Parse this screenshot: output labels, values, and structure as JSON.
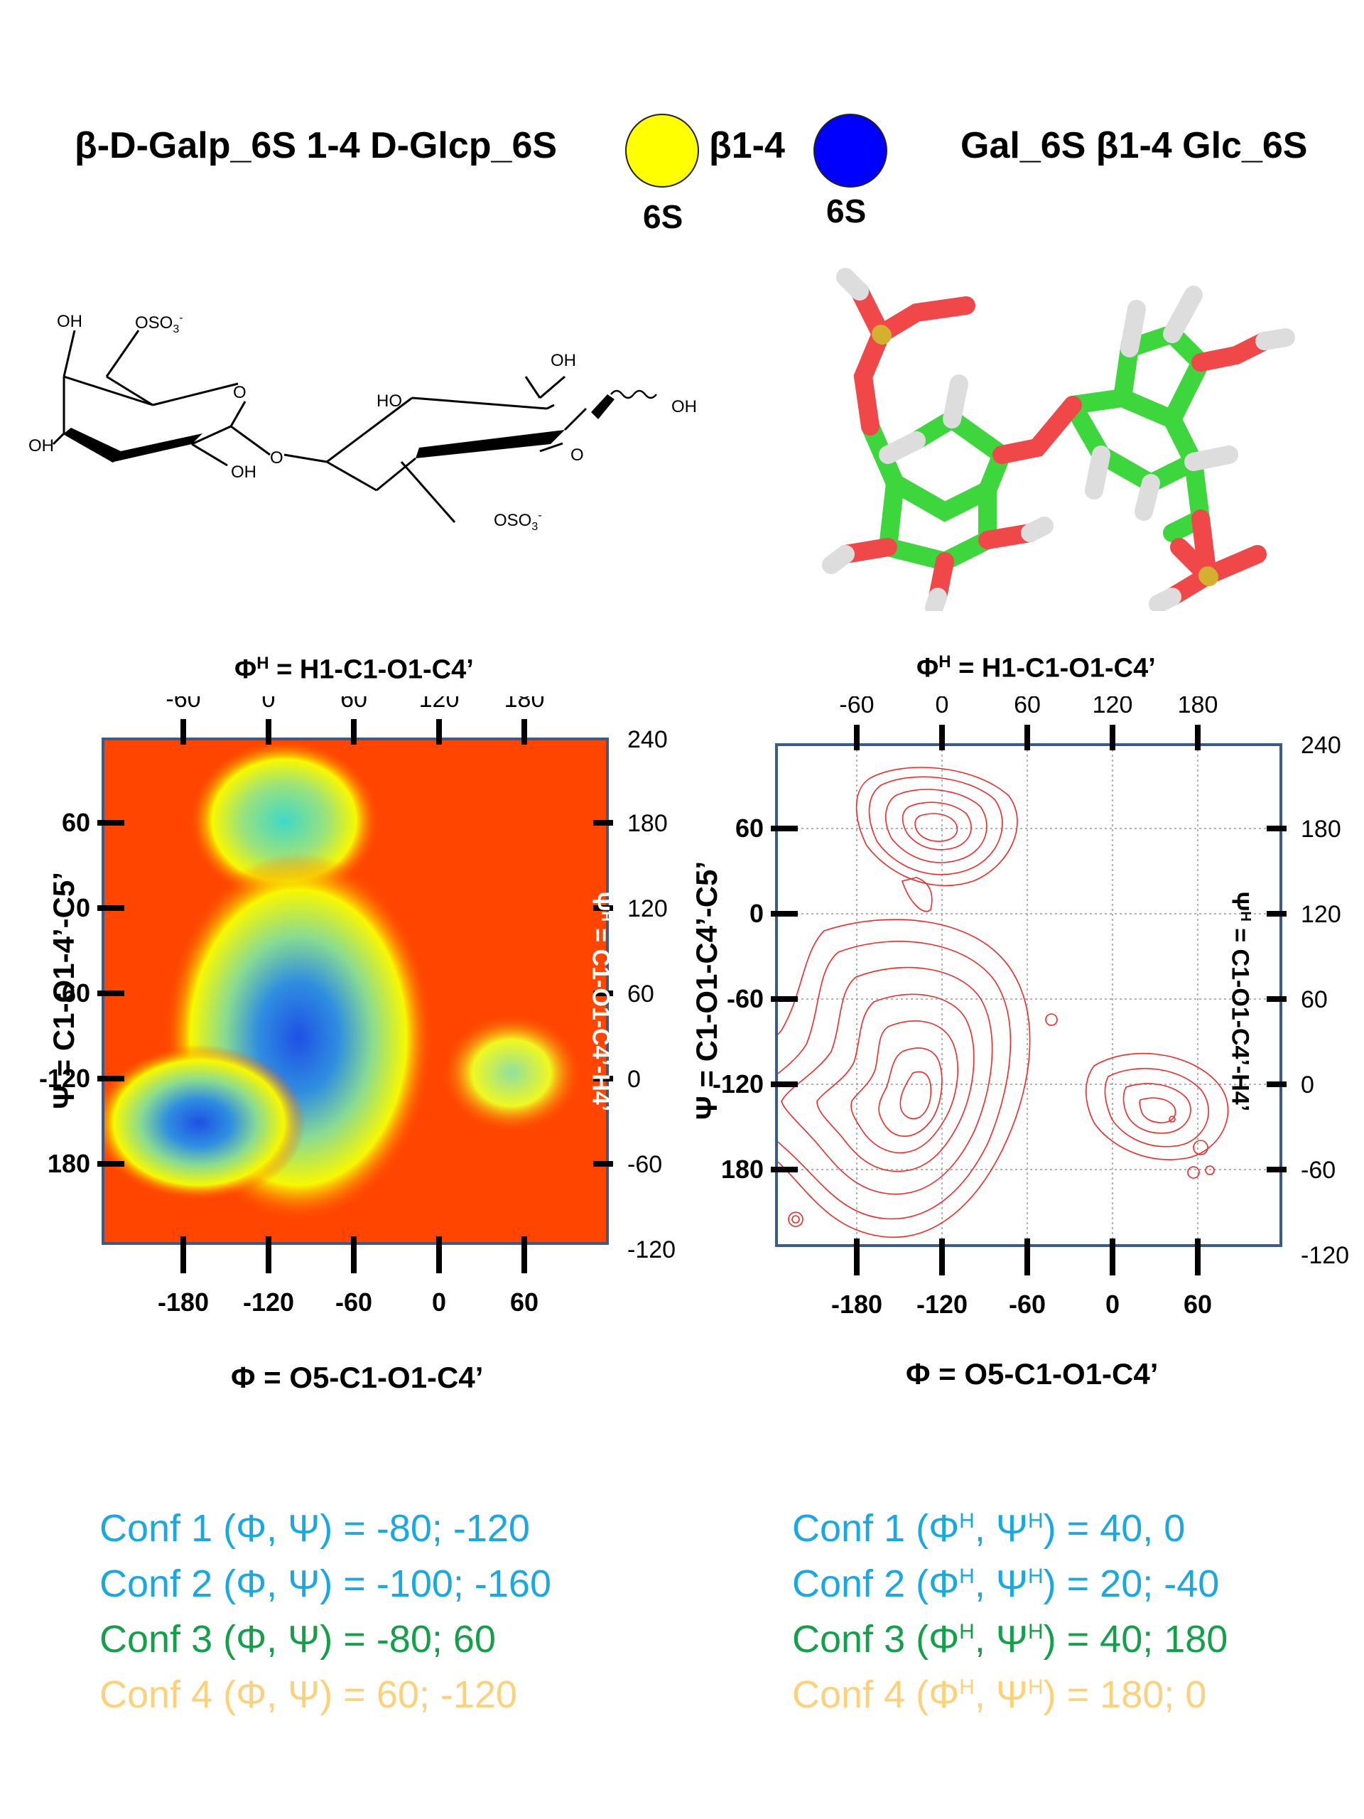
{
  "header": {
    "left_title": "β-D-Galp_6S 1-4 D-Glcp_6S",
    "linkage": "β1-4",
    "right_title": "Gal_6S β1-4 Glc_6S",
    "gal_color": "#ffff00",
    "glc_color": "#0000ff",
    "gal_label": "6S",
    "glc_label": "6S"
  },
  "structure": {
    "left_ring_labels": [
      "OH",
      "OSO3-",
      "O",
      "OH",
      "OH",
      "O",
      "HO",
      "OH",
      "OH",
      "O",
      "OSO3-"
    ],
    "sulfate_label_1": "OSO",
    "sulfate_label_2": "OSO",
    "sub3": "3",
    "sup_minus": "-"
  },
  "plot_left": {
    "top_title": "Φ",
    "top_title_sup": "H",
    "top_title_rest": " = H1-C1-O1-C4’",
    "bottom_title": "Φ = O5-C1-O1-C4’",
    "left_title": "Ψ = C1-O1-4’-C5’",
    "right_title": "Ψ",
    "right_title_sup": "H",
    "right_title_rest": " = C1-O1-C4’-H4’",
    "top_ticks": [
      "-60",
      "0",
      "60",
      "120",
      "180"
    ],
    "bottom_ticks": [
      "-180",
      "-120",
      "-60",
      "0",
      "60"
    ],
    "left_ticks": [
      "60",
      "0",
      "-60",
      "-120",
      "180"
    ],
    "right_ticks": [
      "240",
      "180",
      "120",
      "60",
      "0",
      "-60",
      "-120"
    ]
  },
  "plot_right": {
    "top_title": "Φ",
    "top_title_sup": "H",
    "top_title_rest": " = H1-C1-O1-C4’",
    "bottom_title": "Φ = O5-C1-O1-C4’",
    "left_title": "Ψ = C1-O1-C4’-C5’",
    "right_title": "Ψ",
    "right_title_sup": "H",
    "right_title_rest": " = C1-O1-C4’-H4’",
    "top_ticks": [
      "-60",
      "0",
      "60",
      "120",
      "180"
    ],
    "bottom_ticks": [
      "-180",
      "-120",
      "-60",
      "0",
      "60"
    ],
    "left_ticks": [
      "60",
      "0",
      "-60",
      "-120",
      "180"
    ],
    "right_ticks": [
      "240",
      "180",
      "120",
      "60",
      "0",
      "-60",
      "-120"
    ]
  },
  "confs_left": [
    {
      "text": "Conf 1 (Φ, Ψ) = -80; -120",
      "color": "#1aa8e0"
    },
    {
      "text": "Conf 2 (Φ, Ψ) = -100; -160",
      "color": "#1aa8e0"
    },
    {
      "text": "Conf 3 (Φ, Ψ) =  -80; 60",
      "color": "#14a04a"
    },
    {
      "text": "Conf 4 (Φ, Ψ) =   60; -120",
      "color": "#fbd27a"
    }
  ],
  "confs_right": [
    {
      "pre": "Conf 1 (Φ",
      "h1": "H",
      "mid": ", Ψ",
      "h2": "H",
      "post": ") = 40, 0",
      "color": "#1aa8e0"
    },
    {
      "pre": "Conf 2 (Φ",
      "h1": "H",
      "mid": ", Ψ",
      "h2": "H",
      "post": ") =  20; -40",
      "color": "#1aa8e0"
    },
    {
      "pre": "Conf 3 (Φ",
      "h1": "H",
      "mid": ", Ψ",
      "h2": "H",
      "post": ") = 40; 180",
      "color": "#14a04a"
    },
    {
      "pre": "Conf 4 (Φ",
      "h1": "H",
      "mid": ", Ψ",
      "h2": "H",
      "post": ") = 180; 0",
      "color": "#fbd27a"
    }
  ]
}
